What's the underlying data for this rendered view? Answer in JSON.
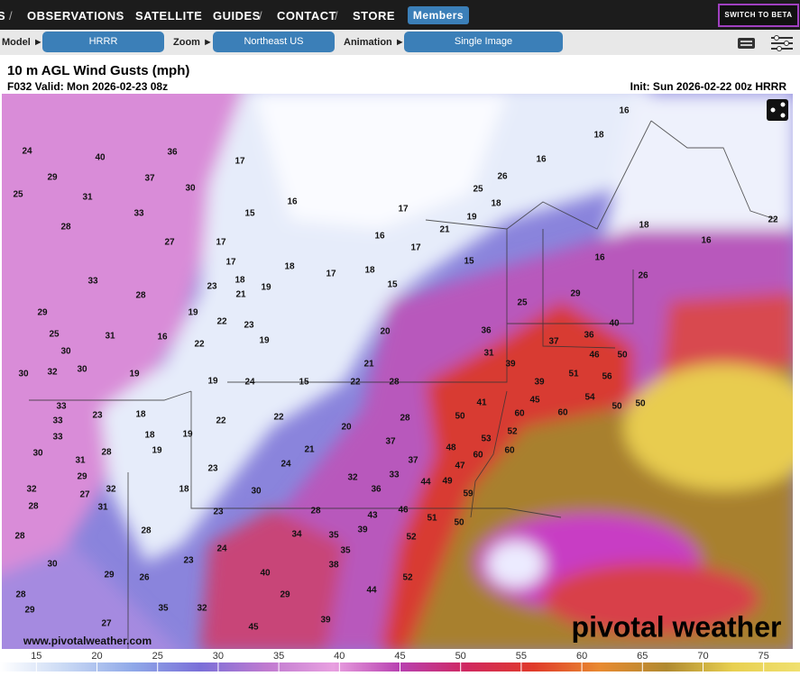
{
  "nav": {
    "items": [
      "S",
      "OBSERVATIONS",
      "SATELLITE",
      "GUIDES",
      "CONTACT",
      "STORE"
    ],
    "members": "Members",
    "beta": "SWITCH TO BETA"
  },
  "controls": {
    "model_label": "Model ►",
    "model": "HRRR",
    "zoom_label": "Zoom ►",
    "zoom": "Northeast US",
    "animation_label": "Animation ►",
    "animation": "Single Image"
  },
  "header": {
    "title": "10 m AGL Wind Gusts (mph)",
    "valid": "F032 Valid: Mon 2026-02-23 08z",
    "init": "Init: Sun 2026-02-22 00z HRRR"
  },
  "map": {
    "gust_labels": [
      40,
      36,
      24,
      29,
      25,
      31,
      37,
      30,
      33,
      27,
      28,
      17,
      15,
      16,
      17,
      17,
      18,
      18,
      17,
      18,
      15,
      16,
      17,
      21,
      17,
      19,
      18,
      25,
      26,
      16,
      18,
      16,
      18,
      16,
      22,
      16,
      26,
      29,
      25,
      15,
      33,
      28,
      29,
      25,
      30,
      31,
      30,
      32,
      30,
      19,
      16,
      19,
      23,
      21,
      19,
      22,
      23,
      22,
      19,
      20,
      21,
      36,
      31,
      37,
      36,
      40,
      46,
      50,
      39,
      39,
      51,
      19,
      24,
      15,
      22,
      28,
      41,
      45,
      56,
      54,
      33,
      23,
      18,
      33,
      33,
      22,
      22,
      20,
      28,
      50,
      60,
      60,
      50,
      50,
      52,
      53,
      18,
      19,
      19,
      31,
      28,
      30,
      29,
      23,
      24,
      21,
      37,
      48,
      60,
      60,
      47,
      37,
      33,
      32,
      32,
      27,
      32,
      18,
      30,
      36,
      44,
      49,
      59,
      28,
      31,
      23,
      28,
      43,
      46,
      51,
      50,
      28,
      28,
      34,
      35,
      39,
      52,
      24,
      23,
      35,
      38,
      30,
      29,
      26,
      40,
      52,
      28,
      44,
      29,
      29,
      35,
      32,
      27,
      45,
      39
    ],
    "watermark": "www.pivotalweather.com",
    "logo": "pivotal weather"
  },
  "colorbar": {
    "ticks": [
      15,
      20,
      25,
      30,
      35,
      40,
      45,
      50,
      55,
      60,
      65,
      70,
      75
    ],
    "lim": [
      12,
      78
    ],
    "colors": [
      "#ffffff",
      "#c8d8f4",
      "#8fa8e8",
      "#7a6fd8",
      "#c07ad0",
      "#e8a0e0",
      "#b840b0",
      "#d02860",
      "#e03a2a",
      "#e88a30",
      "#b08a30",
      "#e8d050",
      "#f0e070"
    ]
  }
}
